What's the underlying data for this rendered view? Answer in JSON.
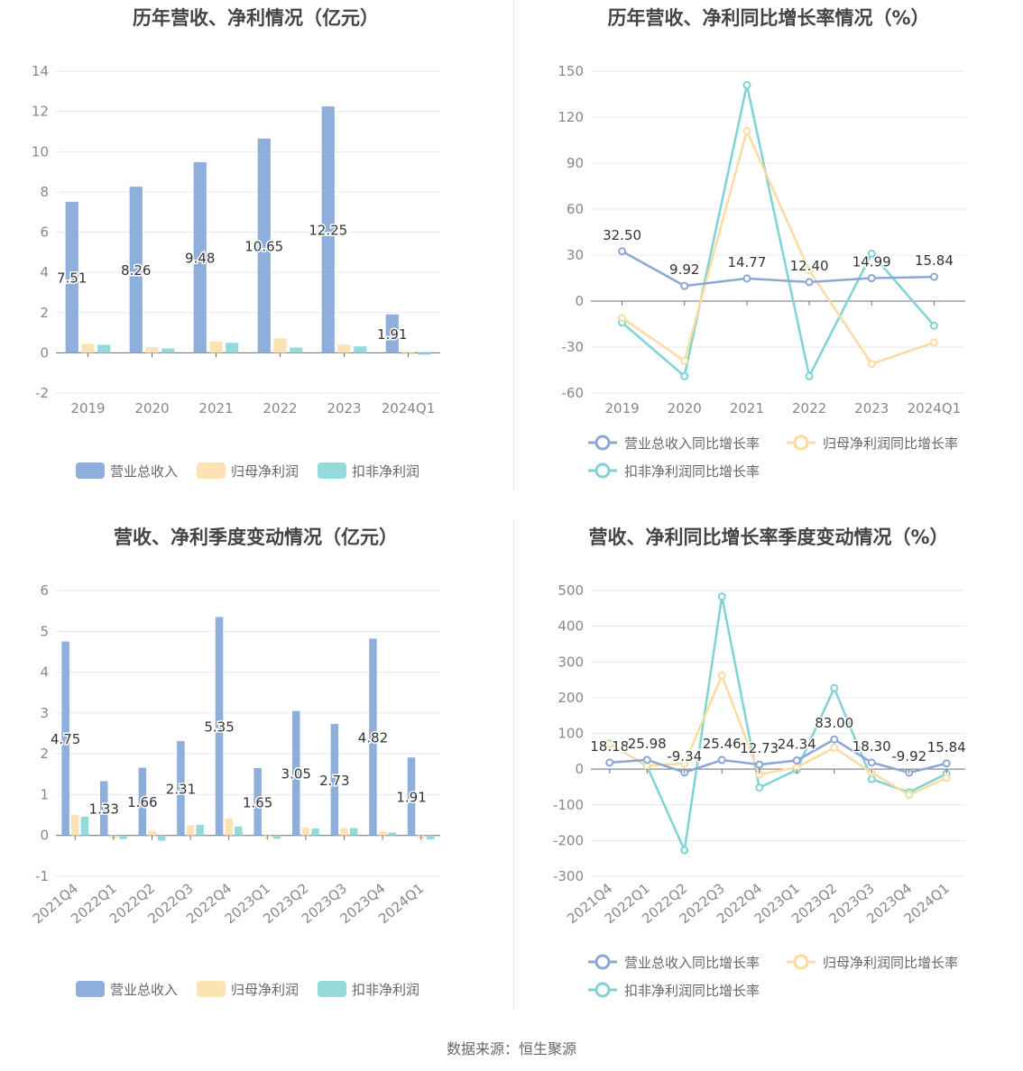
{
  "source_text": "数据来源：恒生聚源",
  "colors": {
    "revenue": "#8eaedb",
    "net_profit": "#fde2b4",
    "deducted_profit": "#95dada",
    "deducted_line": "#7fd3d3",
    "net_line": "#fcdba0",
    "revenue_line": "#8ca7d6",
    "grid": "#e6e9f2",
    "axis_text": "#888888"
  },
  "chart_data": [
    {
      "id": "annual-amount",
      "type": "bar",
      "title": "历年营收、净利情况（亿元）",
      "categories": [
        "2019",
        "2020",
        "2021",
        "2022",
        "2023",
        "2024Q1"
      ],
      "ylim": [
        -2,
        14
      ],
      "yticks": [
        -2,
        0,
        2,
        4,
        6,
        8,
        10,
        12,
        14
      ],
      "series": [
        {
          "name": "营业总收入",
          "values": [
            7.51,
            8.26,
            9.48,
            10.65,
            12.25,
            1.91
          ],
          "labels": [
            "7.51",
            "8.26",
            "9.48",
            "10.65",
            "12.25",
            "1.91"
          ]
        },
        {
          "name": "归母净利润",
          "values": [
            0.45,
            0.28,
            0.56,
            0.72,
            0.41,
            -0.08
          ]
        },
        {
          "name": "扣非净利润",
          "values": [
            0.4,
            0.22,
            0.5,
            0.26,
            0.32,
            -0.09
          ]
        }
      ],
      "legend": [
        "营业总收入",
        "归母净利润",
        "扣非净利润"
      ]
    },
    {
      "id": "annual-growth",
      "type": "line",
      "title": "历年营收、净利同比增长率情况（%）",
      "categories": [
        "2019",
        "2020",
        "2021",
        "2022",
        "2023",
        "2024Q1"
      ],
      "ylim": [
        -60,
        150
      ],
      "yticks": [
        -60,
        -30,
        0,
        30,
        60,
        90,
        120,
        150
      ],
      "series": [
        {
          "name": "营业总收入同比增长率",
          "values": [
            32.5,
            9.92,
            14.77,
            12.4,
            14.99,
            15.84
          ],
          "labels": [
            "32.50",
            "9.92",
            "14.77",
            "12.40",
            "14.99",
            "15.84"
          ]
        },
        {
          "name": "归母净利润同比增长率",
          "values": [
            -11,
            -39,
            111,
            20,
            -41,
            -27
          ]
        },
        {
          "name": "扣非净利润同比增长率",
          "values": [
            -14,
            -49,
            141,
            -49,
            31,
            -16
          ]
        }
      ],
      "legend": [
        "营业总收入同比增长率",
        "归母净利润同比增长率",
        "扣非净利润同比增长率"
      ]
    },
    {
      "id": "quarterly-amount",
      "type": "bar",
      "title": "营收、净利季度变动情况（亿元）",
      "categories": [
        "2021Q4",
        "2022Q1",
        "2022Q2",
        "2022Q3",
        "2022Q4",
        "2023Q1",
        "2023Q2",
        "2023Q3",
        "2023Q4",
        "2024Q1"
      ],
      "ylim": [
        -1,
        6
      ],
      "yticks": [
        -1,
        0,
        1,
        2,
        3,
        4,
        5,
        6
      ],
      "series": [
        {
          "name": "营业总收入",
          "values": [
            4.75,
            1.33,
            1.66,
            2.31,
            5.35,
            1.65,
            3.05,
            2.73,
            4.82,
            1.91
          ],
          "labels": [
            "4.75",
            "1.33",
            "1.66",
            "2.31",
            "5.35",
            "1.65",
            "3.05",
            "2.73",
            "4.82",
            "1.91"
          ]
        },
        {
          "name": "归母净利润",
          "values": [
            0.5,
            -0.07,
            0.12,
            0.25,
            0.42,
            -0.06,
            0.2,
            0.18,
            0.1,
            -0.08
          ]
        },
        {
          "name": "扣非净利润",
          "values": [
            0.46,
            -0.09,
            -0.13,
            0.26,
            0.22,
            -0.08,
            0.17,
            0.18,
            0.07,
            -0.1
          ]
        }
      ],
      "legend": [
        "营业总收入",
        "归母净利润",
        "扣非净利润"
      ]
    },
    {
      "id": "quarterly-growth",
      "type": "line",
      "title": "营收、净利同比增长率季度变动情况（%）",
      "categories": [
        "2021Q4",
        "2022Q1",
        "2022Q2",
        "2022Q3",
        "2022Q4",
        "2023Q1",
        "2023Q2",
        "2023Q3",
        "2023Q4",
        "2024Q1"
      ],
      "ylim": [
        -300,
        500
      ],
      "yticks": [
        -300,
        -200,
        -100,
        0,
        100,
        200,
        300,
        400,
        500
      ],
      "series": [
        {
          "name": "营业总收入同比增长率",
          "values": [
            18.18,
            25.98,
            -9.34,
            25.46,
            12.73,
            24.34,
            83.0,
            18.3,
            -9.92,
            15.84
          ],
          "labels": [
            "18.18",
            "25.98",
            "-9.34",
            "25.46",
            "12.73",
            "24.34",
            "83.00",
            "18.30",
            "-9.92",
            "15.84"
          ]
        },
        {
          "name": "归母净利润同比增长率",
          "values": [
            70,
            10,
            15,
            262,
            -15,
            5,
            60,
            -10,
            -72,
            -25
          ]
        },
        {
          "name": "扣非净利润同比增长率",
          "values": [
            72,
            8,
            -227,
            483,
            -52,
            -2,
            227,
            -28,
            -65,
            -13
          ]
        }
      ],
      "legend": [
        "营业总收入同比增长率",
        "归母净利润同比增长率",
        "扣非净利润同比增长率"
      ]
    }
  ]
}
